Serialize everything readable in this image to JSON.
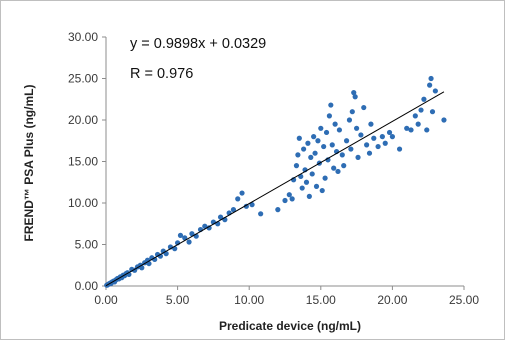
{
  "chart_data": {
    "type": "scatter",
    "xlabel": "Predicate device (ng/mL)",
    "ylabel": "FREND™ PSA Plus (ng/mL)",
    "xlim": [
      0,
      25
    ],
    "ylim": [
      0,
      30
    ],
    "xticks": [
      "0.00",
      "5.00",
      "10.00",
      "15.00",
      "20.00",
      "25.00"
    ],
    "yticks": [
      "0.00",
      "5.00",
      "10.00",
      "15.00",
      "20.00",
      "25.00",
      "30.00"
    ],
    "grid": false,
    "legend": "none",
    "marker_color": "#2e6db4",
    "trendline": {
      "slope": 0.9898,
      "intercept": 0.0329,
      "x_range": [
        0,
        23.6
      ],
      "color": "#000000"
    },
    "annotations": {
      "equation": "y = 0.9898x + 0.0329",
      "r": "R = 0.976"
    },
    "points": [
      [
        0.05,
        0.1
      ],
      [
        0.1,
        0.12
      ],
      [
        0.15,
        0.2
      ],
      [
        0.2,
        0.25
      ],
      [
        0.25,
        0.3
      ],
      [
        0.3,
        0.35
      ],
      [
        0.35,
        0.3
      ],
      [
        0.4,
        0.45
      ],
      [
        0.45,
        0.5
      ],
      [
        0.5,
        0.55
      ],
      [
        0.55,
        0.6
      ],
      [
        0.6,
        0.5
      ],
      [
        0.7,
        0.75
      ],
      [
        0.8,
        0.9
      ],
      [
        0.9,
        0.85
      ],
      [
        1.0,
        1.1
      ],
      [
        1.1,
        1.0
      ],
      [
        1.2,
        1.3
      ],
      [
        1.3,
        1.25
      ],
      [
        1.4,
        1.5
      ],
      [
        1.5,
        1.6
      ],
      [
        1.6,
        1.4
      ],
      [
        1.8,
        2.0
      ],
      [
        2.0,
        1.9
      ],
      [
        2.2,
        2.3
      ],
      [
        2.4,
        2.5
      ],
      [
        2.5,
        2.2
      ],
      [
        2.7,
        2.8
      ],
      [
        2.9,
        3.1
      ],
      [
        3.0,
        2.7
      ],
      [
        3.2,
        3.4
      ],
      [
        3.4,
        3.2
      ],
      [
        3.6,
        3.8
      ],
      [
        3.8,
        3.6
      ],
      [
        4.0,
        4.2
      ],
      [
        4.2,
        3.9
      ],
      [
        4.5,
        4.7
      ],
      [
        4.8,
        4.5
      ],
      [
        5.0,
        5.2
      ],
      [
        5.2,
        6.1
      ],
      [
        5.5,
        5.8
      ],
      [
        5.8,
        5.3
      ],
      [
        6.0,
        6.3
      ],
      [
        6.3,
        6.0
      ],
      [
        6.6,
        6.8
      ],
      [
        6.9,
        7.2
      ],
      [
        7.2,
        7.0
      ],
      [
        7.5,
        7.7
      ],
      [
        7.8,
        7.5
      ],
      [
        8.0,
        8.3
      ],
      [
        8.3,
        8.0
      ],
      [
        8.6,
        8.8
      ],
      [
        8.9,
        9.2
      ],
      [
        9.2,
        10.5
      ],
      [
        9.5,
        11.2
      ],
      [
        9.8,
        9.6
      ],
      [
        10.2,
        9.8
      ],
      [
        10.8,
        8.7
      ],
      [
        12.0,
        9.2
      ],
      [
        12.5,
        10.3
      ],
      [
        12.8,
        11.0
      ],
      [
        13.0,
        10.5
      ],
      [
        13.1,
        12.8
      ],
      [
        13.3,
        14.5
      ],
      [
        13.4,
        15.8
      ],
      [
        13.5,
        17.8
      ],
      [
        13.6,
        13.2
      ],
      [
        13.7,
        11.8
      ],
      [
        13.8,
        16.5
      ],
      [
        13.9,
        14.0
      ],
      [
        14.0,
        12.5
      ],
      [
        14.1,
        17.2
      ],
      [
        14.2,
        10.8
      ],
      [
        14.3,
        15.5
      ],
      [
        14.4,
        13.5
      ],
      [
        14.5,
        18.0
      ],
      [
        14.6,
        16.0
      ],
      [
        14.7,
        12.0
      ],
      [
        14.8,
        17.5
      ],
      [
        14.9,
        14.8
      ],
      [
        15.0,
        19.0
      ],
      [
        15.1,
        11.5
      ],
      [
        15.2,
        16.8
      ],
      [
        15.3,
        13.0
      ],
      [
        15.4,
        18.5
      ],
      [
        15.5,
        15.2
      ],
      [
        15.6,
        20.5
      ],
      [
        15.7,
        21.8
      ],
      [
        15.8,
        17.0
      ],
      [
        15.9,
        14.2
      ],
      [
        16.0,
        19.5
      ],
      [
        16.1,
        16.2
      ],
      [
        16.2,
        13.8
      ],
      [
        16.3,
        18.8
      ],
      [
        16.5,
        15.8
      ],
      [
        16.6,
        14.5
      ],
      [
        16.8,
        17.5
      ],
      [
        17.0,
        20.0
      ],
      [
        17.1,
        16.5
      ],
      [
        17.2,
        21.0
      ],
      [
        17.3,
        23.3
      ],
      [
        17.4,
        22.8
      ],
      [
        17.5,
        19.0
      ],
      [
        17.6,
        15.5
      ],
      [
        17.8,
        18.2
      ],
      [
        18.0,
        21.5
      ],
      [
        18.2,
        17.0
      ],
      [
        18.4,
        16.0
      ],
      [
        18.5,
        19.5
      ],
      [
        18.7,
        17.8
      ],
      [
        19.0,
        16.8
      ],
      [
        19.3,
        18.0
      ],
      [
        19.5,
        17.2
      ],
      [
        19.8,
        18.5
      ],
      [
        20.0,
        18.0
      ],
      [
        20.5,
        16.5
      ],
      [
        21.0,
        19.0
      ],
      [
        21.3,
        18.8
      ],
      [
        21.6,
        20.5
      ],
      [
        21.8,
        19.5
      ],
      [
        22.0,
        21.2
      ],
      [
        22.2,
        22.5
      ],
      [
        22.4,
        18.8
      ],
      [
        22.6,
        24.2
      ],
      [
        22.7,
        25.0
      ],
      [
        22.8,
        21.0
      ],
      [
        23.0,
        23.5
      ],
      [
        23.6,
        20.0
      ]
    ]
  }
}
